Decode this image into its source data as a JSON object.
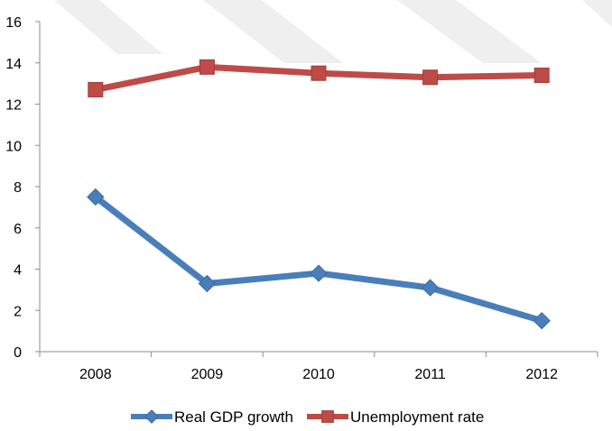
{
  "chart_data": {
    "type": "line",
    "categories": [
      "2008",
      "2009",
      "2010",
      "2011",
      "2012"
    ],
    "ylim": [
      0,
      16
    ],
    "yticks": [
      0,
      2,
      4,
      6,
      8,
      10,
      12,
      14,
      16
    ],
    "grid": false,
    "legend_position": "bottom",
    "series": [
      {
        "name": "Real GDP growth",
        "values": [
          7.5,
          3.3,
          3.8,
          3.1,
          1.5
        ],
        "color": "#4a7ebb",
        "marker": "diamond"
      },
      {
        "name": "Unemployment rate",
        "values": [
          12.7,
          13.8,
          13.5,
          13.3,
          13.4
        ],
        "color": "#be4b48",
        "marker": "square"
      }
    ]
  }
}
